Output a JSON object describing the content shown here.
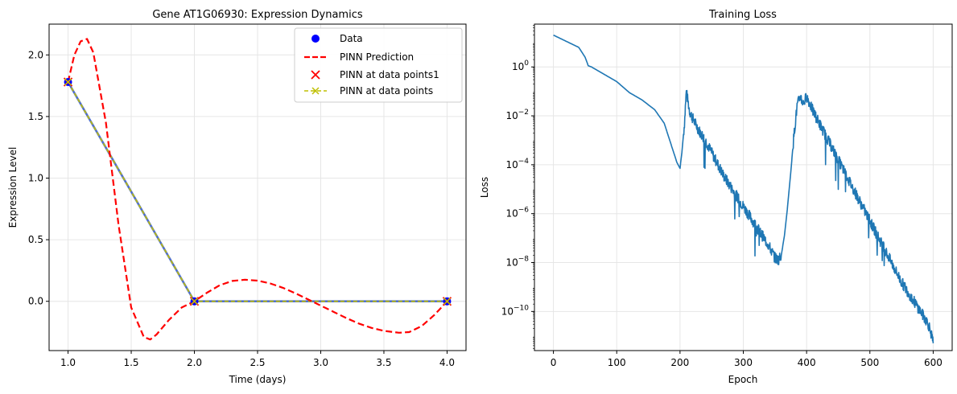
{
  "chart_data": [
    {
      "type": "line",
      "title": "Gene AT1G06930: Expression Dynamics",
      "xlabel": "Time (days)",
      "ylabel": "Expression Level",
      "xlim": [
        0.85,
        4.15
      ],
      "ylim": [
        -0.4,
        2.25
      ],
      "xticks": [
        "1.0",
        "1.5",
        "2.0",
        "2.5",
        "3.0",
        "3.5",
        "4.0"
      ],
      "yticks": [
        "0.0",
        "0.5",
        "1.0",
        "1.5",
        "2.0"
      ],
      "grid": true,
      "legend_position": "top-right",
      "series": [
        {
          "name": "Data",
          "kind": "scatter",
          "color": "#0000ff",
          "x": [
            1.0,
            2.0,
            4.0
          ],
          "y": [
            1.78,
            0.0,
            0.0
          ]
        },
        {
          "name": "PINN Prediction",
          "kind": "line",
          "style": "dashed",
          "color": "#ff0000",
          "x": [
            1.0,
            1.05,
            1.1,
            1.15,
            1.2,
            1.3,
            1.4,
            1.5,
            1.6,
            1.65,
            1.7,
            1.8,
            1.9,
            2.0,
            2.1,
            2.2,
            2.3,
            2.4,
            2.5,
            2.6,
            2.7,
            2.8,
            2.9,
            3.0,
            3.1,
            3.2,
            3.3,
            3.4,
            3.5,
            3.62,
            3.7,
            3.8,
            3.9,
            4.0
          ],
          "y": [
            1.78,
            2.0,
            2.11,
            2.13,
            2.02,
            1.45,
            0.62,
            -0.05,
            -0.29,
            -0.31,
            -0.27,
            -0.15,
            -0.05,
            0.0,
            0.07,
            0.13,
            0.165,
            0.175,
            0.168,
            0.145,
            0.11,
            0.065,
            0.015,
            -0.035,
            -0.085,
            -0.135,
            -0.18,
            -0.215,
            -0.24,
            -0.255,
            -0.25,
            -0.2,
            -0.11,
            0.0
          ]
        },
        {
          "name": "PINN at data points1",
          "kind": "scatter",
          "marker": "x",
          "color": "#ff0000",
          "x": [
            1.0,
            2.0,
            4.0
          ],
          "y": [
            1.78,
            0.0,
            0.0
          ]
        },
        {
          "name": "PINN at data points",
          "kind": "line",
          "style": "dashed",
          "marker": "x",
          "color": "#bfbf00",
          "x": [
            1.0,
            2.0,
            4.0
          ],
          "y": [
            1.78,
            0.0,
            0.0
          ]
        }
      ]
    },
    {
      "type": "line",
      "title": "Training Loss",
      "xlabel": "Epoch",
      "ylabel": "Loss",
      "xlim": [
        -30,
        630
      ],
      "ylim_log10": [
        -11.6,
        1.75
      ],
      "yscale": "log",
      "xticks": [
        "0",
        "100",
        "200",
        "300",
        "400",
        "500",
        "600"
      ],
      "yticks": [
        "10^0",
        "10^-2",
        "10^-4",
        "10^-6",
        "10^-8",
        "10^-10"
      ],
      "grid": true,
      "series": [
        {
          "name": "",
          "color": "#1f77b4",
          "x": [
            0,
            20,
            40,
            50,
            55,
            60,
            80,
            100,
            120,
            140,
            160,
            175,
            185,
            195,
            200,
            203,
            207,
            210,
            215,
            220,
            230,
            240,
            250,
            260,
            270,
            280,
            290,
            300,
            310,
            320,
            330,
            340,
            350,
            355,
            360,
            365,
            370,
            375,
            380,
            385,
            390,
            395,
            400,
            410,
            420,
            430,
            440,
            450,
            460,
            470,
            480,
            490,
            500,
            510,
            520,
            530,
            540,
            550,
            560,
            570,
            580,
            590,
            595,
            600
          ],
          "log10_y": [
            1.3,
            1.05,
            0.8,
            0.4,
            0.05,
            0.0,
            -0.3,
            -0.6,
            -1.05,
            -1.35,
            -1.75,
            -2.3,
            -3.1,
            -3.9,
            -4.15,
            -3.5,
            -2.3,
            -1.0,
            -1.8,
            -2.1,
            -2.6,
            -3.0,
            -3.5,
            -4.0,
            -4.5,
            -4.9,
            -5.3,
            -5.7,
            -6.1,
            -6.5,
            -6.9,
            -7.3,
            -7.8,
            -7.9,
            -7.7,
            -6.9,
            -5.7,
            -4.3,
            -2.8,
            -1.6,
            -1.2,
            -1.5,
            -1.2,
            -1.8,
            -2.3,
            -2.8,
            -3.3,
            -3.8,
            -4.3,
            -4.8,
            -5.3,
            -5.8,
            -6.3,
            -6.8,
            -7.3,
            -7.8,
            -8.3,
            -8.8,
            -9.2,
            -9.6,
            -10.0,
            -10.4,
            -10.7,
            -11.3
          ]
        }
      ]
    }
  ]
}
